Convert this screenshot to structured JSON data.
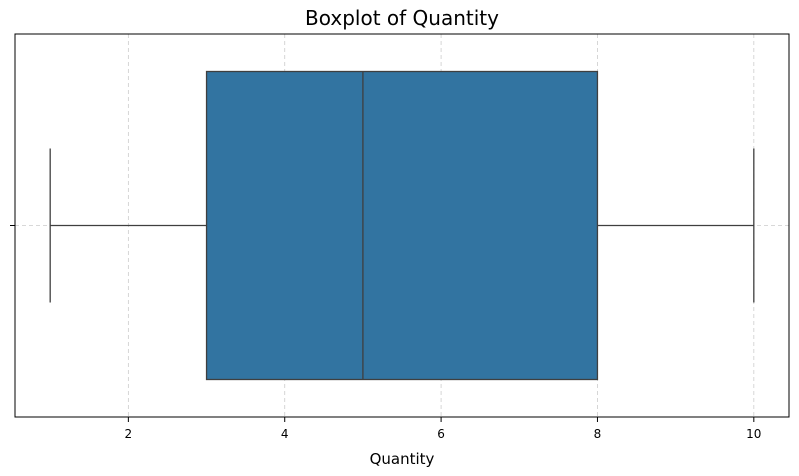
{
  "chart_data": {
    "type": "boxplot",
    "title": "Boxplot of Quantity",
    "xlabel": "Quantity",
    "ylabel": "",
    "orientation": "horizontal",
    "xlim": [
      0.55,
      10.45
    ],
    "x_ticks": [
      2,
      4,
      6,
      8,
      10
    ],
    "grid": true,
    "box": {
      "whisker_low": 1,
      "q1": 3,
      "median": 5,
      "q3": 8,
      "whisker_high": 10
    },
    "colors": {
      "box_fill": "#3274a1",
      "line": "#3f3f3f",
      "grid": "#cccccc",
      "axes": "#000000"
    }
  }
}
